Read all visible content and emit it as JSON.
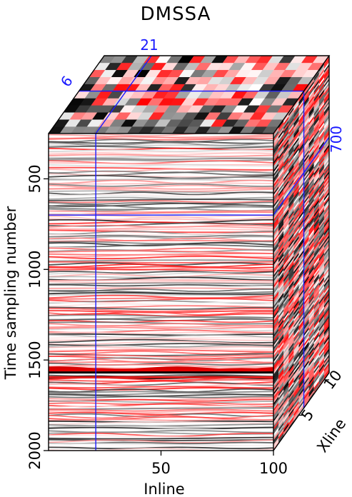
{
  "chart_data": {
    "type": "heatmap",
    "title": "DMSSA",
    "xlabel": "Inline",
    "ylabel": "Time sampling number",
    "zlabel": "Xline",
    "x_range": [
      0,
      100
    ],
    "y_range": [
      250,
      2000
    ],
    "z_range": [
      0,
      11
    ],
    "x_ticks": [
      "50",
      "100"
    ],
    "x_tick_values": [
      50,
      100
    ],
    "y_ticks": [
      "500",
      "1000",
      "1500",
      "2000"
    ],
    "y_tick_values": [
      500,
      1000,
      1500,
      2000
    ],
    "z_ticks": [
      "5",
      "10"
    ],
    "z_tick_values": [
      5,
      10
    ],
    "slices": {
      "inline": 21,
      "xline": 6,
      "time": 700
    },
    "slice_labels": [
      "21",
      "6",
      "700"
    ],
    "colormap": [
      "#000000",
      "#ffffff",
      "#ff0000"
    ],
    "slice_line_color": "#1a1aff",
    "strong_reflectors_time": [
      1555,
      1595
    ]
  }
}
